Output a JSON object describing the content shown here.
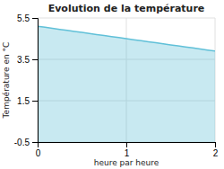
{
  "chart_data": {
    "type": "area",
    "title": "Evolution de la température",
    "xlabel": "heure par heure",
    "ylabel": "Température en °C",
    "x": [
      0.0,
      0.08333,
      0.16667,
      0.25,
      0.33333,
      0.41667,
      0.5,
      0.58333,
      0.66667,
      0.75,
      0.83333,
      0.91667,
      1.0,
      1.08333,
      1.16667,
      1.25,
      1.33333,
      1.41667,
      1.5,
      1.58333,
      1.66667,
      1.75,
      1.83333,
      1.91667,
      2.0
    ],
    "values": [
      5.1,
      5.05,
      5.0,
      4.95,
      4.9,
      4.85,
      4.8,
      4.75,
      4.7,
      4.65,
      4.6,
      4.55,
      4.5,
      4.45,
      4.4,
      4.35,
      4.3,
      4.25,
      4.2,
      4.15,
      4.1,
      4.05,
      4.0,
      3.95,
      3.9
    ],
    "color": "#60c0d8",
    "xlim": [
      0,
      2
    ],
    "ylim": [
      -0.5,
      5.5
    ],
    "xticks": [
      0,
      1,
      2
    ],
    "yticks": [
      -0.5,
      1.5,
      3.5,
      5.5
    ],
    "grid": true
  }
}
